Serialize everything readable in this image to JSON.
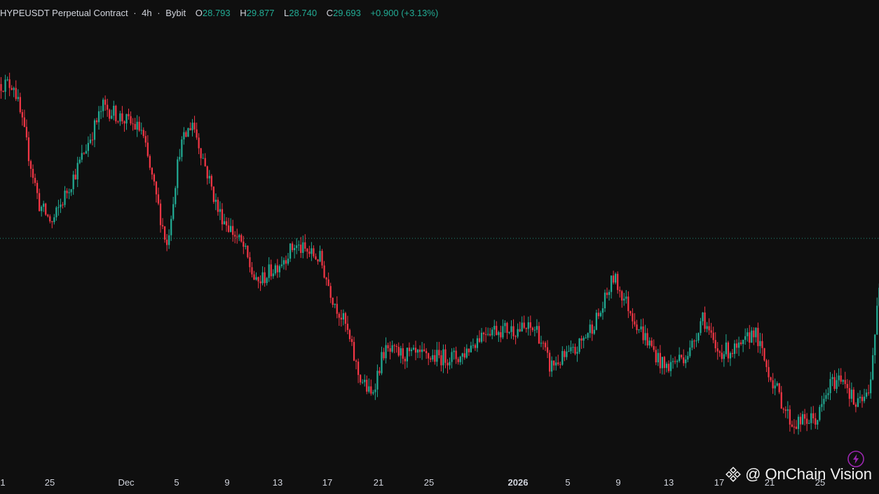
{
  "legend": {
    "symbol": "HYPEUSDT Perpetual Contract",
    "interval": "4h",
    "exchange": "Bybit",
    "open_label": "O",
    "open": "28.793",
    "high_label": "H",
    "high": "29.877",
    "low_label": "L",
    "low": "28.740",
    "close_label": "C",
    "close": "29.693",
    "change": "+0.900 (+3.13%)",
    "separator": "·"
  },
  "watermark": {
    "text": "@ OnChain Vision",
    "logo_icon": "binance-square-logo-icon"
  },
  "colors": {
    "background": "#0f0f0f",
    "up": "#22ab94",
    "down": "#f23645",
    "price_line": "#22ab94",
    "axis_text": "#d1d4dc",
    "bolt": "#9c27b0"
  },
  "chart_data": {
    "type": "candlestick",
    "title": "HYPEUSDT Perpetual Contract · 4h · Bybit",
    "x_tick_labels": [
      "1",
      "25",
      "Dec",
      "5",
      "9",
      "13",
      "17",
      "21",
      "25",
      "2026",
      "5",
      "9",
      "13",
      "17",
      "21",
      "25"
    ],
    "current_price": 29.693,
    "last_candle": {
      "open": 28.793,
      "high": 29.877,
      "low": 28.74,
      "close": 29.693,
      "change": 0.9,
      "change_pct": 3.13
    },
    "grid": false,
    "approx_path": [
      {
        "date": "Nov 21",
        "price": 38.0
      },
      {
        "date": "Nov 23",
        "price": 31.5
      },
      {
        "date": "Nov 24",
        "price": 30.5
      },
      {
        "date": "Nov 26",
        "price": 33.5
      },
      {
        "date": "Nov 28",
        "price": 36.8
      },
      {
        "date": "Dec 1",
        "price": 35.5
      },
      {
        "date": "Dec 3",
        "price": 29.3
      },
      {
        "date": "Dec 4",
        "price": 34.5
      },
      {
        "date": "Dec 5",
        "price": 36.0
      },
      {
        "date": "Dec 7",
        "price": 31.2
      },
      {
        "date": "Dec 9",
        "price": 29.2
      },
      {
        "date": "Dec 10",
        "price": 27.2
      },
      {
        "date": "Dec 12",
        "price": 28.5
      },
      {
        "date": "Dec 13",
        "price": 29.3
      },
      {
        "date": "Dec 15",
        "price": 28.6
      },
      {
        "date": "Dec 16",
        "price": 26.5
      },
      {
        "date": "Dec 17",
        "price": 25.0
      },
      {
        "date": "Dec 18",
        "price": 22.4
      },
      {
        "date": "Dec 19",
        "price": 21.2
      },
      {
        "date": "Dec 20",
        "price": 23.6
      },
      {
        "date": "Dec 23",
        "price": 23.3
      },
      {
        "date": "Dec 26",
        "price": 23.3
      },
      {
        "date": "Dec 28",
        "price": 24.8
      },
      {
        "date": "Jan 1",
        "price": 24.8
      },
      {
        "date": "Jan 2",
        "price": 22.8
      },
      {
        "date": "Jan 4",
        "price": 23.6
      },
      {
        "date": "Jan 6",
        "price": 25.7
      },
      {
        "date": "Jan 7",
        "price": 27.6
      },
      {
        "date": "Jan 9",
        "price": 24.9
      },
      {
        "date": "Jan 11",
        "price": 22.7
      },
      {
        "date": "Jan 13",
        "price": 23.6
      },
      {
        "date": "Jan 14",
        "price": 25.6
      },
      {
        "date": "Jan 15",
        "price": 23.6
      },
      {
        "date": "Jan 17",
        "price": 23.7
      },
      {
        "date": "Jan 18",
        "price": 24.8
      },
      {
        "date": "Jan 19",
        "price": 22.8
      },
      {
        "date": "Jan 20",
        "price": 21.2
      },
      {
        "date": "Jan 21",
        "price": 19.7
      },
      {
        "date": "Jan 23",
        "price": 20.0
      },
      {
        "date": "Jan 24",
        "price": 21.8
      },
      {
        "date": "Jan 25",
        "price": 22.3
      },
      {
        "date": "Jan 26",
        "price": 20.6
      },
      {
        "date": "Jan 27",
        "price": 21.3
      },
      {
        "date": "Jan 28",
        "price": 28.0
      },
      {
        "date": "Jan 29",
        "price": 29.693
      }
    ]
  }
}
